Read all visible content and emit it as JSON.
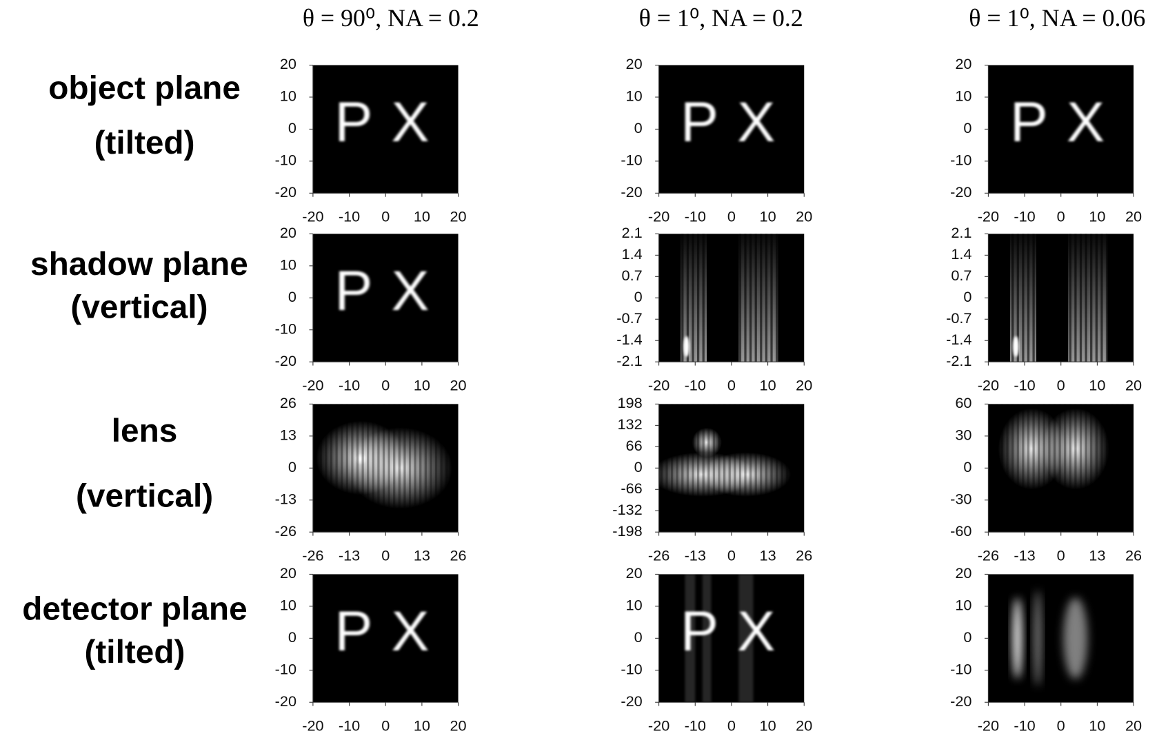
{
  "column_headers": [
    "θ = 90⁰, NA = 0.2",
    "θ = 1⁰, NA = 0.2",
    "θ = 1⁰, NA = 0.06"
  ],
  "row_labels": [
    [
      "object plane",
      "(tilted)"
    ],
    [
      "shadow plane",
      "(vertical)"
    ],
    [
      "lens",
      "(vertical)"
    ],
    [
      "detector plane",
      "(tilted)"
    ]
  ],
  "panels": [
    [
      {
        "xticks": [
          -20,
          -10,
          0,
          10,
          20
        ],
        "yticks": [
          -20,
          -10,
          0,
          10,
          20
        ],
        "letters": [
          "P",
          "X"
        ]
      },
      {
        "xticks": [
          -20,
          -10,
          0,
          10,
          20
        ],
        "yticks": [
          -20,
          -10,
          0,
          10,
          20
        ],
        "letters": [
          "P",
          "X"
        ]
      },
      {
        "xticks": [
          -20,
          -10,
          0,
          10,
          20
        ],
        "yticks": [
          -20,
          -10,
          0,
          10,
          20
        ],
        "letters": [
          "P",
          "X"
        ]
      }
    ],
    [
      {
        "xticks": [
          -20,
          -10,
          0,
          10,
          20
        ],
        "yticks": [
          -20,
          -10,
          0,
          10,
          20
        ],
        "letters": [
          "P",
          "X"
        ]
      },
      {
        "xticks": [
          -20,
          -10,
          0,
          10,
          20
        ],
        "yticks": [
          -2.1,
          -1.4,
          -0.7,
          0,
          0.7,
          1.4,
          2.1
        ]
      },
      {
        "xticks": [
          -20,
          -10,
          0,
          10,
          20
        ],
        "yticks": [
          -2.1,
          -1.4,
          -0.7,
          0,
          0.7,
          1.4,
          2.1
        ]
      }
    ],
    [
      {
        "xticks": [
          -26,
          -13,
          0,
          13,
          26
        ],
        "yticks": [
          -26,
          -13,
          0,
          13,
          26
        ]
      },
      {
        "xticks": [
          -26,
          -13,
          0,
          13,
          26
        ],
        "yticks": [
          -198,
          -132,
          -66,
          0,
          66,
          132,
          198
        ]
      },
      {
        "xticks": [
          -26,
          -13,
          0,
          13,
          26
        ],
        "yticks": [
          -60,
          -30,
          0,
          30,
          60
        ]
      }
    ],
    [
      {
        "xticks": [
          -20,
          -10,
          0,
          10,
          20
        ],
        "yticks": [
          -20,
          -10,
          0,
          10,
          20
        ],
        "letters": [
          "P",
          "X"
        ]
      },
      {
        "xticks": [
          -20,
          -10,
          0,
          10,
          20
        ],
        "yticks": [
          -20,
          -10,
          0,
          10,
          20
        ],
        "letters": [
          "P",
          "X"
        ]
      },
      {
        "xticks": [
          -20,
          -10,
          0,
          10,
          20
        ],
        "yticks": [
          -20,
          -10,
          0,
          10,
          20
        ]
      }
    ]
  ]
}
